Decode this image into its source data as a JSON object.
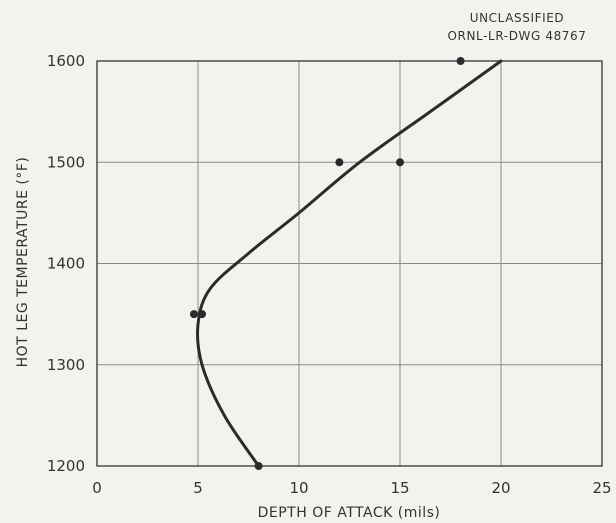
{
  "stamp": {
    "line1": "UNCLASSIFIED",
    "line2": "ORNL-LR-DWG 48767"
  },
  "chart_data": {
    "type": "scatter",
    "xlabel": "DEPTH OF ATTACK (mils)",
    "ylabel": "HOT LEG TEMPERATURE (°F)",
    "xlim": [
      0,
      25
    ],
    "ylim": [
      1200,
      1600
    ],
    "x_ticks": [
      0,
      5,
      10,
      15,
      20,
      25
    ],
    "y_ticks": [
      1200,
      1300,
      1400,
      1500,
      1600
    ],
    "grid": true,
    "points": [
      {
        "x": 18,
        "y": 1600
      },
      {
        "x": 12,
        "y": 1500
      },
      {
        "x": 15,
        "y": 1500
      },
      {
        "x": 4.8,
        "y": 1350
      },
      {
        "x": 5.2,
        "y": 1350
      },
      {
        "x": 8,
        "y": 1200
      }
    ],
    "curve": [
      {
        "x": 8,
        "y": 1200
      },
      {
        "x": 6.3,
        "y": 1250
      },
      {
        "x": 5.2,
        "y": 1300
      },
      {
        "x": 5.0,
        "y": 1340
      },
      {
        "x": 5.6,
        "y": 1375
      },
      {
        "x": 7.5,
        "y": 1410
      },
      {
        "x": 10.0,
        "y": 1450
      },
      {
        "x": 13.0,
        "y": 1500
      },
      {
        "x": 16.5,
        "y": 1550
      },
      {
        "x": 20,
        "y": 1600
      }
    ],
    "colors": {
      "line": "#2b2b2b",
      "grid": "#8a8a8a",
      "point": "#2b2b2b"
    }
  }
}
